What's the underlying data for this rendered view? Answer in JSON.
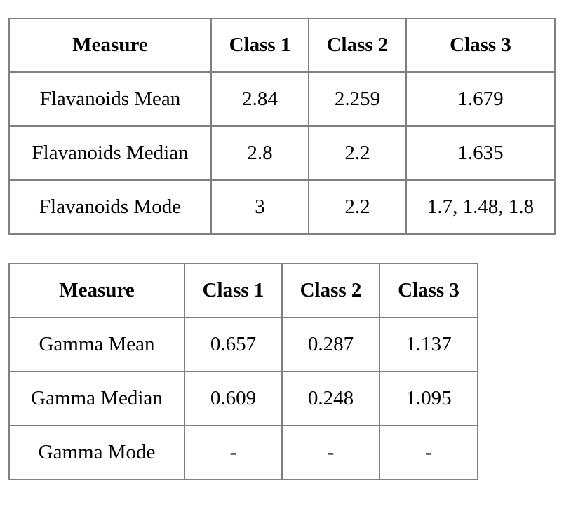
{
  "tables": [
    {
      "headers": [
        "Measure",
        "Class 1",
        "Class 2",
        "Class 3"
      ],
      "rows": [
        [
          "Flavanoids Mean",
          "2.84",
          "2.259",
          "1.679"
        ],
        [
          "Flavanoids Median",
          "2.8",
          "2.2",
          "1.635"
        ],
        [
          "Flavanoids Mode",
          "3",
          "2.2",
          "1.7, 1.48, 1.8"
        ]
      ]
    },
    {
      "headers": [
        "Measure",
        "Class 1",
        "Class 2",
        "Class 3"
      ],
      "rows": [
        [
          "Gamma Mean",
          "0.657",
          "0.287",
          "1.137"
        ],
        [
          "Gamma Median",
          "0.609",
          "0.248",
          "1.095"
        ],
        [
          "Gamma Mode",
          "-",
          "-",
          "-"
        ]
      ]
    }
  ]
}
